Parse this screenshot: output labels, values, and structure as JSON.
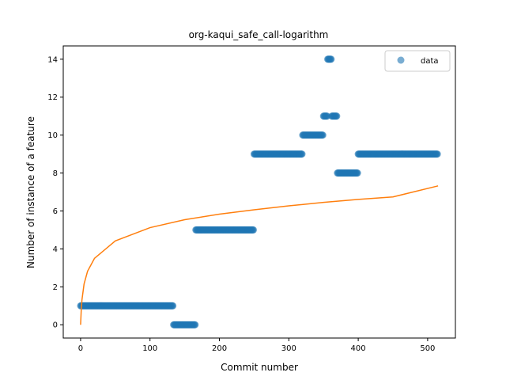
{
  "chart_data": {
    "type": "scatter",
    "title": "org-kaqui_safe_call-logarithm",
    "xlabel": "Commit number",
    "ylabel": "Number of instance of a feature",
    "xlim": [
      -25,
      540
    ],
    "ylim": [
      -0.7,
      14.7
    ],
    "xticks": [
      0,
      100,
      200,
      300,
      400,
      500
    ],
    "yticks": [
      0,
      2,
      4,
      6,
      8,
      10,
      12,
      14
    ],
    "grid": false,
    "legend": {
      "placement": "top-right",
      "entries": [
        "data"
      ]
    },
    "colors": {
      "points": "#1f77b4",
      "fit_line": "#ff7f0e"
    },
    "series": [
      {
        "name": "data",
        "kind": "points",
        "segments": [
          {
            "x_start": 0,
            "x_end": 134,
            "y": 1
          },
          {
            "x_start": 134,
            "x_end": 166,
            "y": 0
          },
          {
            "x_start": 166,
            "x_end": 250,
            "y": 5
          },
          {
            "x_start": 250,
            "x_end": 320,
            "y": 9
          },
          {
            "x_start": 320,
            "x_end": 350,
            "y": 10
          },
          {
            "x_start": 350,
            "x_end": 356,
            "y": 11
          },
          {
            "x_start": 356,
            "x_end": 362,
            "y": 14
          },
          {
            "x_start": 362,
            "x_end": 370,
            "y": 11
          },
          {
            "x_start": 370,
            "x_end": 400,
            "y": 8
          },
          {
            "x_start": 400,
            "x_end": 515,
            "y": 9
          }
        ]
      },
      {
        "kind": "line",
        "model": "logarithmic",
        "points": [
          [
            0,
            0
          ],
          [
            1,
            0.84
          ],
          [
            2,
            1.33
          ],
          [
            5,
            2.15
          ],
          [
            10,
            2.82
          ],
          [
            20,
            3.5
          ],
          [
            50,
            4.42
          ],
          [
            100,
            5.12
          ],
          [
            150,
            5.54
          ],
          [
            200,
            5.83
          ],
          [
            250,
            6.06
          ],
          [
            300,
            6.27
          ],
          [
            350,
            6.45
          ],
          [
            400,
            6.61
          ],
          [
            450,
            6.74
          ],
          [
            515,
            7.32
          ]
        ]
      }
    ]
  }
}
